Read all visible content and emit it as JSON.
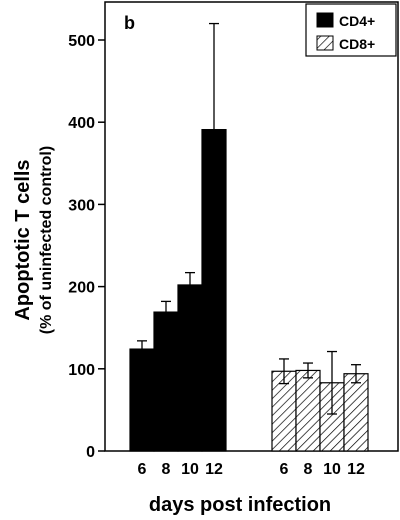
{
  "chart_data": {
    "type": "bar",
    "panel_label": "b",
    "xlabel": "days post infection",
    "ylabel": "Apoptotic T cells",
    "ylabel_sub": "(% of uninfected control)",
    "ylim": [
      0,
      500
    ],
    "yticks": [
      0,
      100,
      200,
      300,
      400,
      500
    ],
    "grid": false,
    "legend_position": "top-right",
    "groups": [
      {
        "name": "CD4+",
        "fill": "solid",
        "color": "#000000",
        "categories": [
          "6",
          "8",
          "10",
          "12"
        ],
        "values": [
          124,
          169,
          202,
          391
        ],
        "error": [
          10,
          13,
          15,
          129
        ]
      },
      {
        "name": "CD8+",
        "fill": "hatched",
        "color": "#ffffff",
        "categories": [
          "6",
          "8",
          "10",
          "12"
        ],
        "values": [
          97,
          98,
          83,
          94
        ],
        "error": [
          15,
          9,
          38,
          11
        ]
      }
    ]
  }
}
